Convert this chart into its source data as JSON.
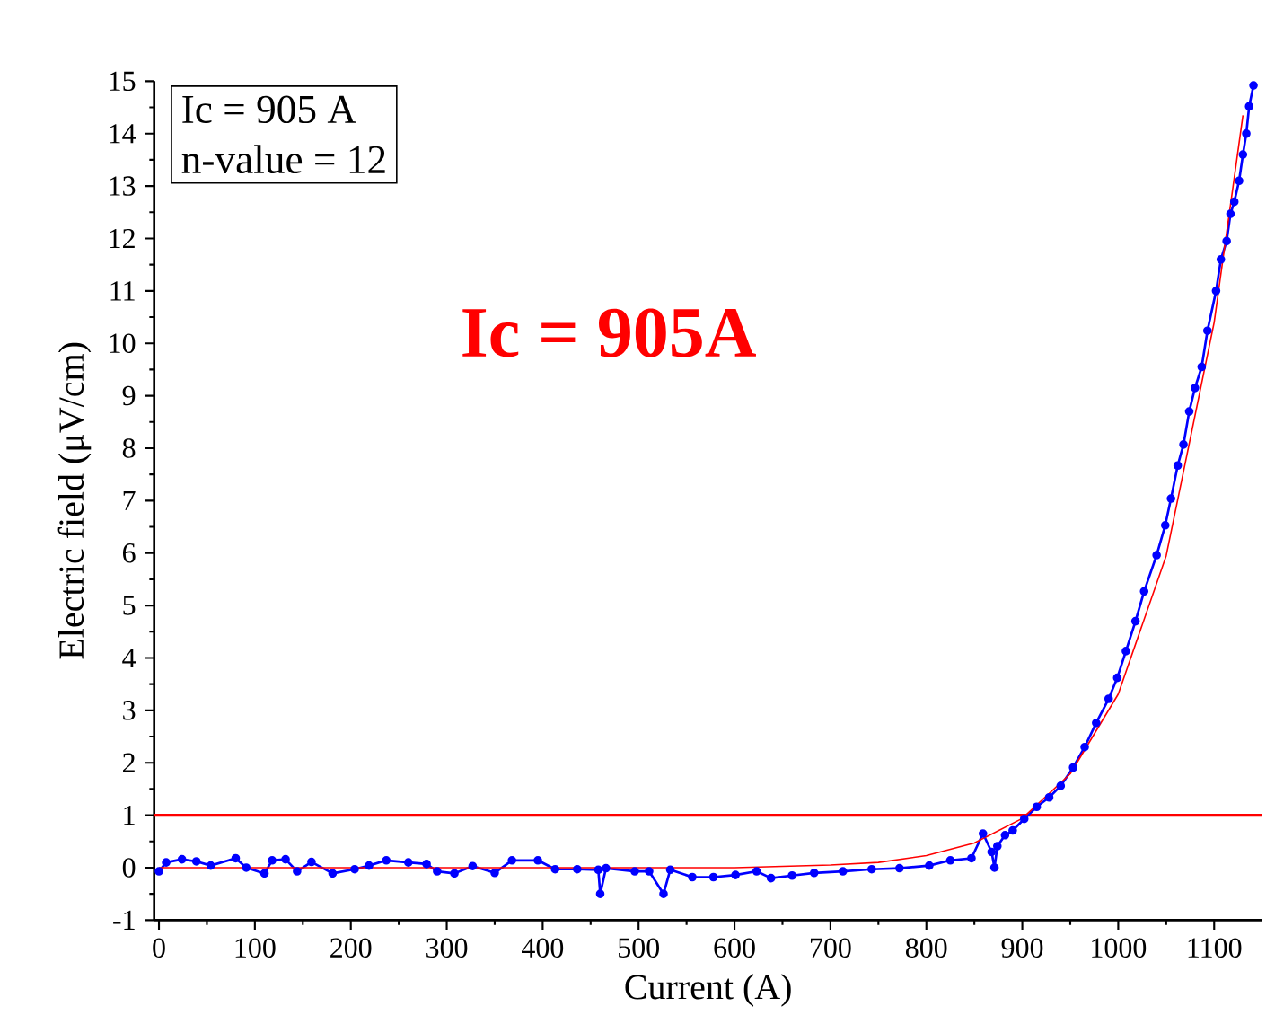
{
  "chart_data": {
    "type": "line",
    "xlabel": "Current (A)",
    "ylabel": "Electric field (μV/cm)",
    "annotations": [
      "Ic = 905 A",
      "n-value = 12",
      "Ic = 905A"
    ],
    "xlim": [
      -5,
      1150
    ],
    "ylim": [
      -1,
      15
    ],
    "xticks": [
      0,
      100,
      200,
      300,
      400,
      500,
      600,
      700,
      800,
      900,
      1000,
      1100
    ],
    "yticks": [
      -1,
      0,
      1,
      2,
      3,
      4,
      5,
      6,
      7,
      8,
      9,
      10,
      11,
      12,
      13,
      14,
      15
    ],
    "grid": false,
    "ref_lines": [
      {
        "axis": "y",
        "value": 1,
        "color": "#ff0000"
      }
    ],
    "series": [
      {
        "color": "#0000ff",
        "marker": "circle",
        "x": [
          0,
          7.5,
          24,
          39,
          54,
          80,
          91,
          110,
          118,
          132,
          144,
          159,
          181,
          204,
          219,
          237,
          260,
          279,
          290,
          308,
          327,
          350,
          368,
          395,
          413,
          436,
          458,
          460,
          466,
          496,
          511,
          526,
          533,
          556,
          578,
          601,
          623,
          638,
          660,
          683,
          713,
          743,
          772,
          803,
          825,
          847,
          859,
          868,
          871,
          874,
          882,
          890,
          902,
          915,
          928,
          940,
          953,
          965,
          977,
          990,
          999,
          1008,
          1018,
          1027,
          1040,
          1049,
          1055,
          1062,
          1068,
          1074,
          1080,
          1087,
          1093,
          1102,
          1107,
          1113,
          1117,
          1121,
          1126,
          1130,
          1133.5,
          1136.5,
          1141
        ],
        "values": [
          -0.07,
          0.1,
          0.16,
          0.12,
          0.04,
          0.18,
          0,
          -0.11,
          0.14,
          0.16,
          -0.07,
          0.11,
          -0.11,
          -0.03,
          0.04,
          0.14,
          0.1,
          0.07,
          -0.07,
          -0.11,
          0.03,
          -0.1,
          0.14,
          0.14,
          -0.03,
          -0.03,
          -0.04,
          -0.5,
          -0.01,
          -0.07,
          -0.07,
          -0.5,
          -0.04,
          -0.18,
          -0.18,
          -0.14,
          -0.07,
          -0.2,
          -0.15,
          -0.1,
          -0.07,
          -0.03,
          -0.01,
          0.04,
          0.14,
          0.18,
          0.65,
          0.3,
          0.0,
          0.41,
          0.62,
          0.71,
          0.93,
          1.16,
          1.34,
          1.56,
          1.91,
          2.3,
          2.76,
          3.22,
          3.62,
          4.13,
          4.7,
          5.27,
          5.96,
          6.53,
          7.04,
          7.67,
          8.07,
          8.7,
          9.15,
          9.55,
          10.24,
          11.0,
          11.6,
          11.95,
          12.47,
          12.7,
          13.1,
          13.6,
          14.0,
          14.52,
          14.92
        ]
      },
      {
        "color": "#ff0000",
        "marker": "none",
        "x": [
          0,
          200,
          400,
          600,
          700,
          750,
          800,
          850,
          900,
          950,
          1000,
          1050,
          1100,
          1130
        ],
        "values": [
          0,
          0,
          0,
          0,
          0.05,
          0.1,
          0.23,
          0.47,
          0.94,
          1.79,
          3.31,
          5.95,
          10.4,
          14.35
        ]
      }
    ]
  }
}
